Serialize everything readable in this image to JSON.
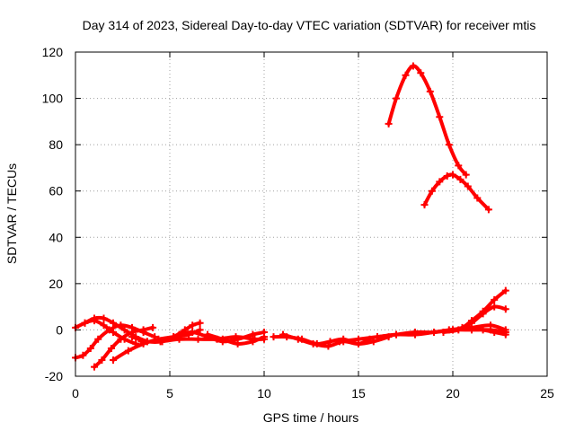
{
  "chart_data": {
    "type": "scatter",
    "title": "Day 314 of 2023, Sidereal Day-to-day VTEC variation (SDTVAR) for receiver mtis",
    "xlabel": "GPS time / hours",
    "ylabel": "SDTVAR / TECUs",
    "xlim": [
      0,
      25
    ],
    "ylim": [
      -20,
      120
    ],
    "xticks": [
      0,
      5,
      10,
      15,
      20,
      25
    ],
    "yticks": [
      -20,
      0,
      20,
      40,
      60,
      80,
      100,
      120
    ],
    "grid": true,
    "marker": "plus",
    "color": "#ff0000",
    "series": [
      {
        "x": [
          16.6,
          17.0,
          17.5,
          17.9,
          18.3,
          18.8,
          19.3,
          19.8,
          20.3,
          20.7
        ],
        "y": [
          89,
          100,
          110,
          114,
          111,
          103,
          92,
          80,
          71,
          67
        ]
      },
      {
        "x": [
          18.5,
          18.9,
          19.3,
          19.7,
          20.0,
          20.4,
          20.8,
          21.3,
          21.9
        ],
        "y": [
          54,
          60,
          64,
          66.5,
          67,
          65,
          62,
          57,
          52
        ]
      },
      {
        "x": [
          0.0,
          0.4,
          0.8,
          1.2,
          1.8,
          2.4,
          3.0,
          3.6,
          4.2
        ],
        "y": [
          -12,
          -11,
          -8,
          -4,
          0,
          2,
          1,
          -1,
          -3
        ]
      },
      {
        "x": [
          0.0,
          0.5,
          1.0,
          1.5,
          2.0,
          2.6,
          3.2
        ],
        "y": [
          1,
          3,
          4,
          2,
          -1,
          -4,
          -6
        ]
      },
      {
        "x": [
          0.5,
          1.0,
          1.5,
          2.0,
          2.6,
          3.2,
          3.8
        ],
        "y": [
          3,
          5,
          5,
          3,
          0,
          -3,
          -5
        ]
      },
      {
        "x": [
          1.0,
          1.4,
          1.9,
          2.4,
          3.0,
          3.6,
          4.1
        ],
        "y": [
          -16,
          -13,
          -8,
          -4,
          -1,
          0,
          1
        ]
      },
      {
        "x": [
          2.0,
          2.8,
          3.6,
          4.4,
          5.2,
          6.0,
          6.6
        ],
        "y": [
          -13,
          -9,
          -6,
          -4,
          -3,
          -2,
          0
        ]
      },
      {
        "x": [
          3.0,
          3.8,
          4.6,
          5.2,
          5.8,
          6.2,
          6.6
        ],
        "y": [
          -3,
          -5,
          -5,
          -3,
          0,
          2,
          3
        ]
      },
      {
        "x": [
          3.5,
          4.5,
          5.5,
          6.5,
          7.5,
          8.5,
          9.5,
          10.0
        ],
        "y": [
          -5,
          -5,
          -4,
          -4,
          -4,
          -3,
          -4,
          -4
        ]
      },
      {
        "x": [
          5.5,
          6.2,
          7.0,
          7.8,
          8.6,
          9.4,
          10.0
        ],
        "y": [
          -2,
          -1,
          -3,
          -5,
          -4,
          -2,
          -1
        ]
      },
      {
        "x": [
          7.0,
          7.8,
          8.6,
          9.4,
          10.0
        ],
        "y": [
          -2,
          -4,
          -6,
          -5,
          -3
        ]
      },
      {
        "x": [
          10.5,
          11.2,
          12.0,
          12.8,
          13.5,
          14.2,
          15.0,
          15.8,
          16.6
        ],
        "y": [
          -3,
          -3,
          -4,
          -6,
          -5,
          -4,
          -6,
          -5,
          -3
        ]
      },
      {
        "x": [
          11.0,
          11.8,
          12.6,
          13.4,
          14.2,
          15.0,
          15.6
        ],
        "y": [
          -2,
          -4,
          -6,
          -7,
          -5,
          -6,
          -4
        ]
      },
      {
        "x": [
          14.0,
          15.0,
          16.0,
          17.0,
          18.0,
          19.0,
          20.0,
          21.0,
          22.0,
          22.8
        ],
        "y": [
          -5,
          -4,
          -3,
          -2,
          -1,
          -1,
          0,
          0,
          0,
          -1
        ]
      },
      {
        "x": [
          16.0,
          17.0,
          18.0,
          19.0,
          20.0,
          21.0,
          22.0,
          22.8
        ],
        "y": [
          -3,
          -2,
          -2,
          -1,
          0,
          1,
          2,
          0
        ]
      },
      {
        "x": [
          19.0,
          19.8,
          20.5,
          21.0,
          21.6,
          22.2,
          22.8
        ],
        "y": [
          -1,
          0,
          1,
          4,
          8,
          13,
          17
        ]
      },
      {
        "x": [
          19.5,
          20.3,
          21.0,
          21.6,
          22.2,
          22.8
        ],
        "y": [
          -1,
          0,
          3,
          7,
          10,
          9
        ]
      },
      {
        "x": [
          20.0,
          20.8,
          21.6,
          22.2,
          22.8
        ],
        "y": [
          0,
          1,
          0,
          -1,
          -2
        ]
      }
    ]
  }
}
